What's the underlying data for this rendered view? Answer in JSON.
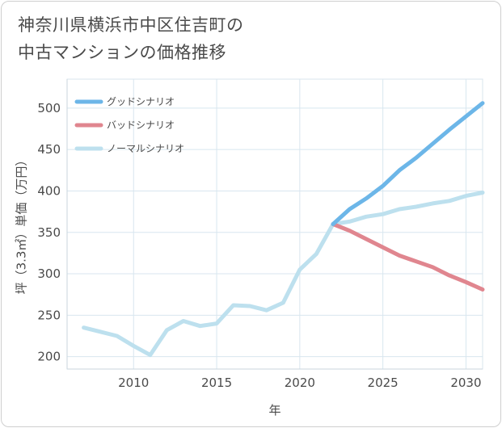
{
  "title": {
    "line1": "神奈川県横浜市中区住吉町の",
    "line2": "中古マンションの価格推移"
  },
  "chart_data": {
    "type": "line",
    "title": "神奈川県横浜市中区住吉町の中古マンションの価格推移",
    "xlabel": "年",
    "ylabel": "坪（3.3㎡）単価（万円）",
    "xlim": [
      2006,
      2031
    ],
    "ylim": [
      185,
      535
    ],
    "xticks": [
      2010,
      2015,
      2020,
      2025,
      2030
    ],
    "yticks": [
      200,
      250,
      300,
      350,
      400,
      450,
      500
    ],
    "grid": true,
    "legend_position": "top-left",
    "series": [
      {
        "name": "グッドシナリオ",
        "color": "#6cb6e8",
        "x": [
          2022,
          2023,
          2024,
          2025,
          2026,
          2027,
          2028,
          2029,
          2030,
          2031
        ],
        "y": [
          360,
          378,
          391,
          406,
          425,
          440,
          457,
          474,
          490,
          506
        ]
      },
      {
        "name": "バッドシナリオ",
        "color": "#e0868f",
        "x": [
          2022,
          2023,
          2024,
          2025,
          2026,
          2027,
          2028,
          2029,
          2030,
          2031
        ],
        "y": [
          360,
          352,
          342,
          332,
          322,
          315,
          308,
          298,
          290,
          281
        ]
      },
      {
        "name": "ノーマルシナリオ",
        "color": "#bde0ee",
        "x": [
          2007,
          2008,
          2009,
          2010,
          2011,
          2012,
          2013,
          2014,
          2015,
          2016,
          2017,
          2018,
          2019,
          2020,
          2021,
          2022,
          2023,
          2024,
          2025,
          2026,
          2027,
          2028,
          2029,
          2030,
          2031
        ],
        "y": [
          235,
          230,
          225,
          213,
          202,
          232,
          243,
          237,
          240,
          262,
          261,
          256,
          265,
          305,
          324,
          360,
          363,
          369,
          372,
          378,
          381,
          385,
          388,
          394,
          398
        ]
      }
    ]
  }
}
